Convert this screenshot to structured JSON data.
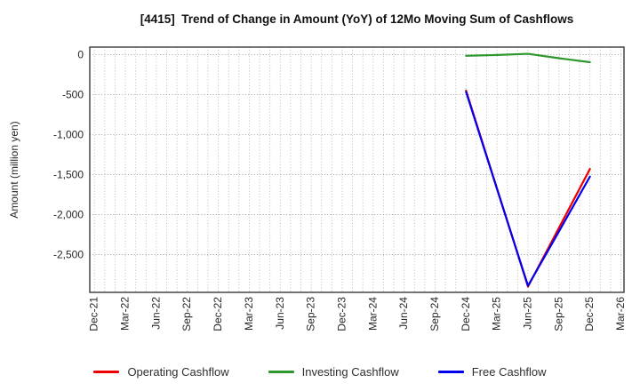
{
  "chart_data": {
    "type": "line",
    "title": "[4415]  Trend of Change in Amount (YoY) of 12Mo Moving Sum of Cashflows",
    "xlabel": "",
    "ylabel": "Amount (million yen)",
    "x_unit": "months since Dec-2021",
    "x_tick_months": [
      0,
      3,
      6,
      9,
      12,
      15,
      18,
      21,
      24,
      27,
      30,
      33,
      36,
      39,
      42,
      45,
      48,
      51
    ],
    "x_tick_labels": [
      "Dec-21",
      "Mar-22",
      "Jun-22",
      "Sep-22",
      "Dec-22",
      "Mar-23",
      "Jun-23",
      "Sep-23",
      "Dec-23",
      "Mar-24",
      "Jun-24",
      "Sep-24",
      "Dec-24",
      "Mar-25",
      "Jun-25",
      "Sep-25",
      "Dec-25",
      "Mar-26"
    ],
    "y_ticks": [
      0,
      -500,
      -1000,
      -1500,
      -2000,
      -2500
    ],
    "y_tick_labels": [
      "0",
      "-500",
      "-1,000",
      "-1,500",
      "-2,000",
      "-2,500"
    ],
    "xlim_months": [
      -0.45,
      51.3
    ],
    "ylim": [
      -2972,
      94
    ],
    "grid": {
      "vertical_every_months": 1,
      "horizontal_at_y_ticks": true,
      "style": "dotted"
    },
    "series": [
      {
        "name": "Operating Cashflow",
        "color": "#ee0000",
        "x_labels": [
          "Dec-24",
          "Mar-25",
          "Jun-25",
          "Sep-25",
          "Dec-25"
        ],
        "x_months": [
          36,
          39,
          42,
          45,
          48
        ],
        "values": [
          -450,
          -1675,
          -2900,
          -2165,
          -1430
        ]
      },
      {
        "name": "Investing Cashflow",
        "color": "#2d962d",
        "x_labels": [
          "Dec-24",
          "Mar-25",
          "Jun-25",
          "Sep-25",
          "Dec-25"
        ],
        "x_months": [
          36,
          39,
          42,
          45,
          48
        ],
        "values": [
          -15,
          -5,
          10,
          -45,
          -95
        ]
      },
      {
        "name": "Free Cashflow",
        "color": "#0000ee",
        "x_labels": [
          "Dec-24",
          "Mar-25",
          "Jun-25",
          "Sep-25",
          "Dec-25"
        ],
        "x_months": [
          36,
          39,
          42,
          45,
          48
        ],
        "values": [
          -465,
          -1680,
          -2890,
          -2210,
          -1525
        ]
      }
    ],
    "legend_position": "bottom-center"
  }
}
